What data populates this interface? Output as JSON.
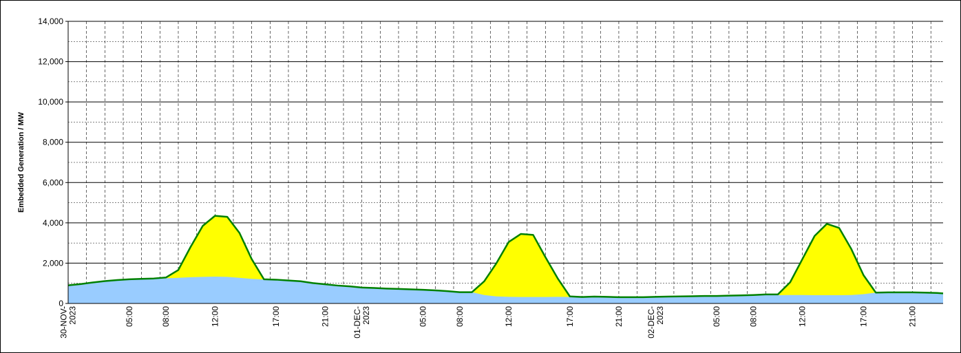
{
  "chart_data": {
    "type": "area",
    "title": "",
    "ylabel": "Embedded Generation / MW",
    "xlabel": "",
    "ylim": [
      0,
      14000
    ],
    "y_ticks": [
      "0",
      "2,000",
      "4,000",
      "6,000",
      "8,000",
      "10,000",
      "12,000",
      "14,000"
    ],
    "y_tick_values": [
      0,
      2000,
      4000,
      6000,
      8000,
      10000,
      12000,
      14000
    ],
    "grid": true,
    "legend": "none",
    "x_tick_labels": [
      {
        "h": 0,
        "lines": [
          "30-NOV-",
          "2023"
        ]
      },
      {
        "h": 5,
        "lines": [
          "05:00"
        ]
      },
      {
        "h": 8,
        "lines": [
          "08:00"
        ]
      },
      {
        "h": 12,
        "lines": [
          "12:00"
        ]
      },
      {
        "h": 17,
        "lines": [
          "17:00"
        ]
      },
      {
        "h": 21,
        "lines": [
          "21:00"
        ]
      },
      {
        "h": 24,
        "lines": [
          "01-DEC-",
          "2023"
        ]
      },
      {
        "h": 29,
        "lines": [
          "05:00"
        ]
      },
      {
        "h": 32,
        "lines": [
          "08:00"
        ]
      },
      {
        "h": 36,
        "lines": [
          "12:00"
        ]
      },
      {
        "h": 41,
        "lines": [
          "17:00"
        ]
      },
      {
        "h": 45,
        "lines": [
          "21:00"
        ]
      },
      {
        "h": 48,
        "lines": [
          "02-DEC-",
          "2023"
        ]
      },
      {
        "h": 53,
        "lines": [
          "05:00"
        ]
      },
      {
        "h": 56,
        "lines": [
          "08:00"
        ]
      },
      {
        "h": 60,
        "lines": [
          "12:00"
        ]
      },
      {
        "h": 65,
        "lines": [
          "17:00"
        ]
      },
      {
        "h": 69,
        "lines": [
          "21:00"
        ]
      }
    ],
    "x_end_hour": 71.5,
    "grid_hour_step": 1.5,
    "hours": [
      0,
      1,
      2,
      3,
      4,
      5,
      6,
      7,
      8,
      9,
      10,
      11,
      12,
      13,
      14,
      15,
      16,
      17,
      18,
      19,
      20,
      21,
      22,
      23,
      24,
      25,
      26,
      27,
      28,
      29,
      30,
      31,
      32,
      33,
      34,
      35,
      36,
      37,
      38,
      39,
      40,
      41,
      42,
      43,
      44,
      45,
      46,
      47,
      48,
      49,
      50,
      51,
      52,
      53,
      54,
      55,
      56,
      57,
      58,
      59,
      60,
      61,
      62,
      63,
      64,
      65,
      66,
      67,
      68,
      69,
      70,
      71,
      71.5
    ],
    "series": [
      {
        "color": "#99ccff",
        "values": [
          900,
          960,
          1040,
          1110,
          1160,
          1200,
          1220,
          1240,
          1250,
          1270,
          1300,
          1320,
          1330,
          1320,
          1270,
          1220,
          1190,
          1170,
          1140,
          1100,
          1010,
          950,
          890,
          850,
          790,
          770,
          740,
          720,
          700,
          680,
          650,
          610,
          560,
          560,
          420,
          350,
          330,
          320,
          320,
          320,
          330,
          320,
          310,
          320,
          320,
          310,
          300,
          300,
          320,
          330,
          330,
          340,
          350,
          360,
          390,
          400,
          420,
          420,
          410,
          420,
          420,
          410,
          410,
          410,
          420,
          460,
          540,
          550,
          550,
          550,
          540,
          520,
          500
        ]
      },
      {
        "color": "#ffff00",
        "line_color": "#008000",
        "values": [
          900,
          960,
          1040,
          1110,
          1160,
          1200,
          1220,
          1240,
          1290,
          1660,
          2800,
          3850,
          4350,
          4300,
          3500,
          2200,
          1200,
          1180,
          1140,
          1100,
          1010,
          950,
          890,
          850,
          790,
          770,
          740,
          720,
          700,
          680,
          650,
          610,
          560,
          560,
          1100,
          2000,
          3050,
          3450,
          3400,
          2300,
          1250,
          350,
          320,
          340,
          330,
          310,
          310,
          310,
          330,
          340,
          350,
          360,
          370,
          370,
          390,
          400,
          420,
          450,
          450,
          1050,
          2200,
          3350,
          3950,
          3750,
          2700,
          1400,
          540,
          550,
          550,
          550,
          540,
          520,
          500
        ]
      }
    ]
  }
}
